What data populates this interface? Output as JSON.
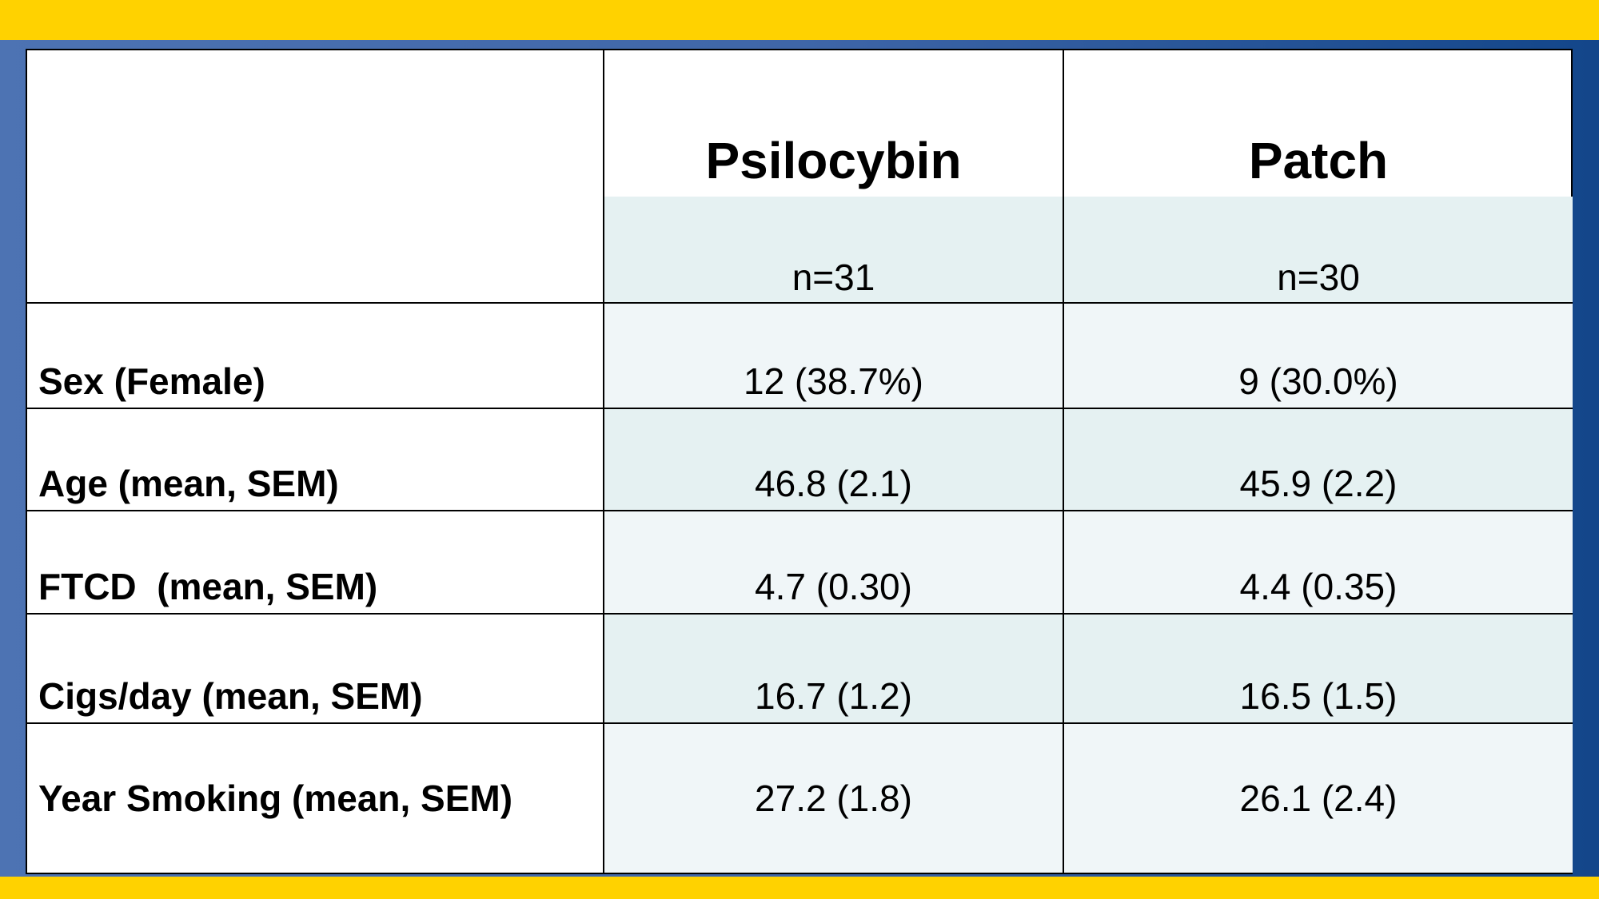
{
  "table": {
    "header": {
      "columns": [
        "Psilocybin",
        "Patch"
      ],
      "n": [
        "n=31",
        "n=30"
      ]
    },
    "rows": [
      {
        "label": "Sex (Female)",
        "values": [
          "12 (38.7%)",
          "9 (30.0%)"
        ]
      },
      {
        "label": "Age (mean, SEM)",
        "values": [
          "46.8 (2.1)",
          "45.9 (2.2)"
        ]
      },
      {
        "label": "FTCD  (mean, SEM)",
        "values": [
          "4.7 (0.30)",
          "4.4 (0.35)"
        ]
      },
      {
        "label": "Cigs/day (mean, SEM)",
        "values": [
          "16.7 (1.2)",
          "16.5 (1.5)"
        ]
      },
      {
        "label": "Year Smoking (mean, SEM)",
        "values": [
          "27.2 (1.8)",
          "26.1 (2.4)"
        ]
      }
    ]
  }
}
